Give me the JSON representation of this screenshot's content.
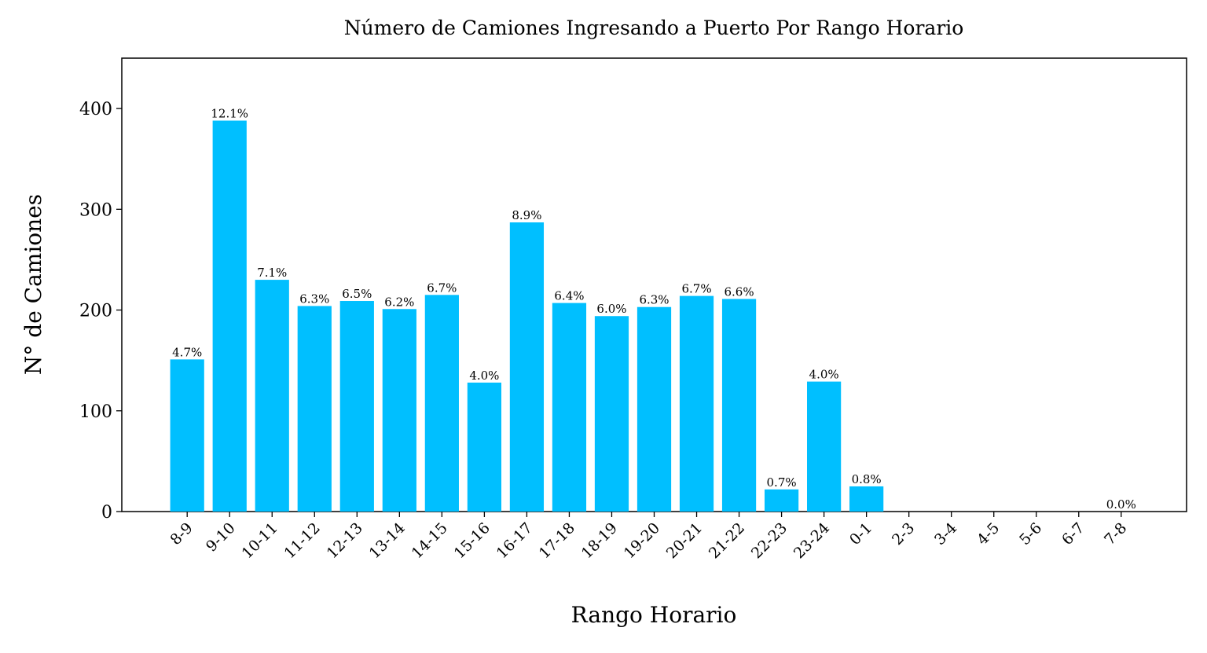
{
  "chart_data": {
    "type": "bar",
    "title": "Número de Camiones Ingresando a Puerto Por Rango Horario",
    "x_label": "Rango Horario",
    "y_label": "N° de Camiones",
    "categories": [
      "8-9",
      "9-10",
      "10-11",
      "11-12",
      "12-13",
      "13-14",
      "14-15",
      "15-16",
      "16-17",
      "17-18",
      "18-19",
      "19-20",
      "20-21",
      "21-22",
      "22-23",
      "23-24",
      "0-1",
      "2-3",
      "3-4",
      "4-5",
      "5-6",
      "6-7",
      "7-8"
    ],
    "values": [
      151,
      388,
      230,
      204,
      209,
      201,
      215,
      128,
      287,
      207,
      194,
      203,
      214,
      211,
      22,
      129,
      25,
      0,
      0,
      0,
      0,
      0,
      0
    ],
    "value_labels": [
      "4.7%",
      "12.1%",
      "7.1%",
      "6.3%",
      "6.5%",
      "6.2%",
      "6.7%",
      "4.0%",
      "8.9%",
      "6.4%",
      "6.0%",
      "6.3%",
      "6.7%",
      "6.6%",
      "0.7%",
      "4.0%",
      "0.8%",
      null,
      null,
      null,
      null,
      null,
      "0.0%"
    ],
    "color": "#00bfff",
    "ylim": [
      0,
      450
    ],
    "yticks": [
      0,
      100,
      200,
      300,
      400
    ]
  }
}
